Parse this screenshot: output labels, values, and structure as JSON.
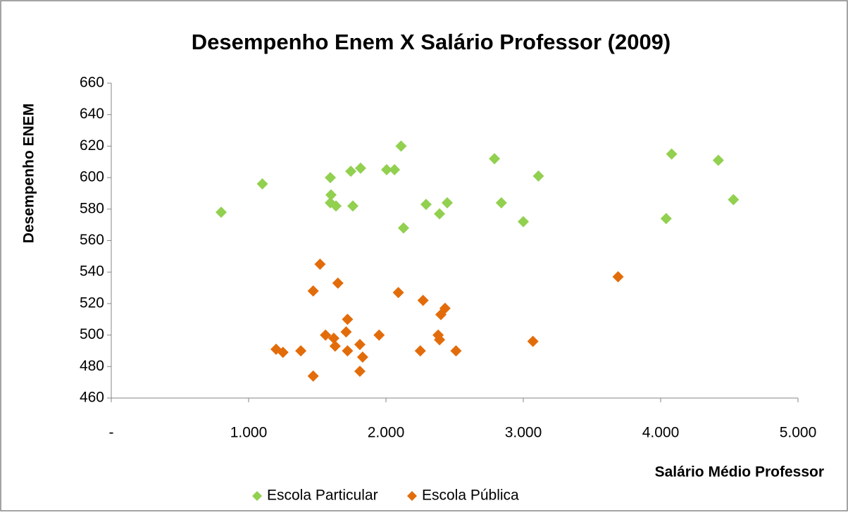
{
  "chart_data": {
    "type": "scatter",
    "title": "Desempenho Enem X Salário Professor (2009)",
    "x_label": "Salário Médio Professor",
    "y_label": "Desempenho ENEM",
    "xlim": [
      0,
      5000
    ],
    "ylim": [
      460,
      660
    ],
    "xticks": [
      {
        "value": 0,
        "label": "-"
      },
      {
        "value": 1000,
        "label": "1.000"
      },
      {
        "value": 2000,
        "label": "2.000"
      },
      {
        "value": 3000,
        "label": "3.000"
      },
      {
        "value": 4000,
        "label": "4.000"
      },
      {
        "value": 5000,
        "label": "5.000"
      }
    ],
    "yticks": [
      460,
      480,
      500,
      520,
      540,
      560,
      580,
      600,
      620,
      640,
      660
    ],
    "series": [
      {
        "name": "Escola Particular",
        "color": "#92d050",
        "x": [
          800,
          1100,
          2110,
          1595,
          1600,
          1595,
          1636,
          1744,
          1815,
          1759,
          2005,
          2062,
          2128,
          2292,
          2446,
          2390,
          2790,
          2840,
          3000,
          3110,
          4040,
          4080,
          4420,
          4530
        ],
        "values": [
          578,
          596,
          620,
          600,
          589,
          584,
          582,
          604,
          606,
          582,
          605,
          605,
          568,
          583,
          584,
          577,
          612,
          584,
          572,
          601,
          574,
          615,
          611,
          586
        ]
      },
      {
        "name": "Escola Pública",
        "color": "#e36c0a",
        "x": [
          1520,
          1470,
          1650,
          2090,
          2270,
          2430,
          2400,
          1720,
          1560,
          1620,
          1710,
          1950,
          2380,
          2390,
          1630,
          1810,
          1200,
          1250,
          1380,
          1720,
          2250,
          2510,
          1830,
          1810,
          1470,
          3070,
          3690
        ],
        "values": [
          545,
          528,
          533,
          527,
          522,
          517,
          513,
          510,
          500,
          498,
          502,
          500,
          500,
          497,
          493,
          494,
          491,
          489,
          490,
          490,
          490,
          490,
          486,
          477,
          474,
          496,
          537
        ]
      }
    ]
  }
}
